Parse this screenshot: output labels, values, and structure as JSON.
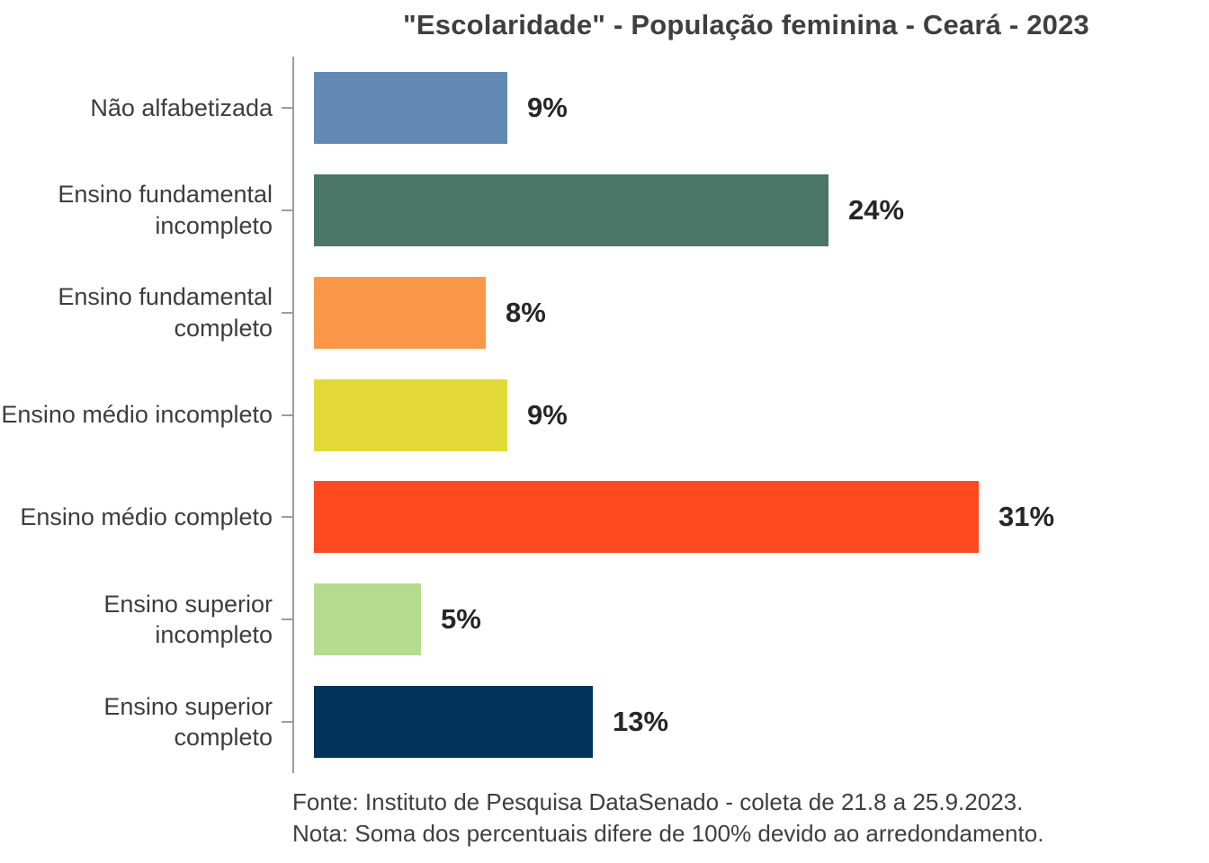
{
  "chart_data": {
    "type": "bar",
    "orientation": "horizontal",
    "title": "\"Escolaridade\" - População feminina - Ceará - 2023",
    "categories": [
      "Não alfabetizada",
      "Ensino fundamental incompleto",
      "Ensino fundamental completo",
      "Ensino médio incompleto",
      "Ensino médio completo",
      "Ensino superior incompleto",
      "Ensino superior completo"
    ],
    "values": [
      9,
      24,
      8,
      9,
      31,
      5,
      13
    ],
    "value_labels": [
      "9%",
      "24%",
      "8%",
      "9%",
      "31%",
      "5%",
      "13%"
    ],
    "bar_colors": [
      "#6289B4",
      "#4A7567",
      "#F99746",
      "#E2D936",
      "#FE4A1E",
      "#B5DB8F",
      "#02335A"
    ],
    "unit": "%",
    "xlim": [
      0,
      42
    ],
    "grid": false,
    "legend": false,
    "value_label_position": "right-of-bar"
  },
  "notes": {
    "source": "Fonte: Instituto de Pesquisa DataSenado - coleta de 21.8 a 25.9.2023.",
    "rounding": "Nota: Soma dos percentuais difere de 100% devido ao arredondamento."
  },
  "colors": {
    "background": "#FFFFFF",
    "axis": "#9D9D9D",
    "title_text": "#3F3F3F",
    "category_text": "#3D3D3D",
    "value_text": "#262626"
  }
}
